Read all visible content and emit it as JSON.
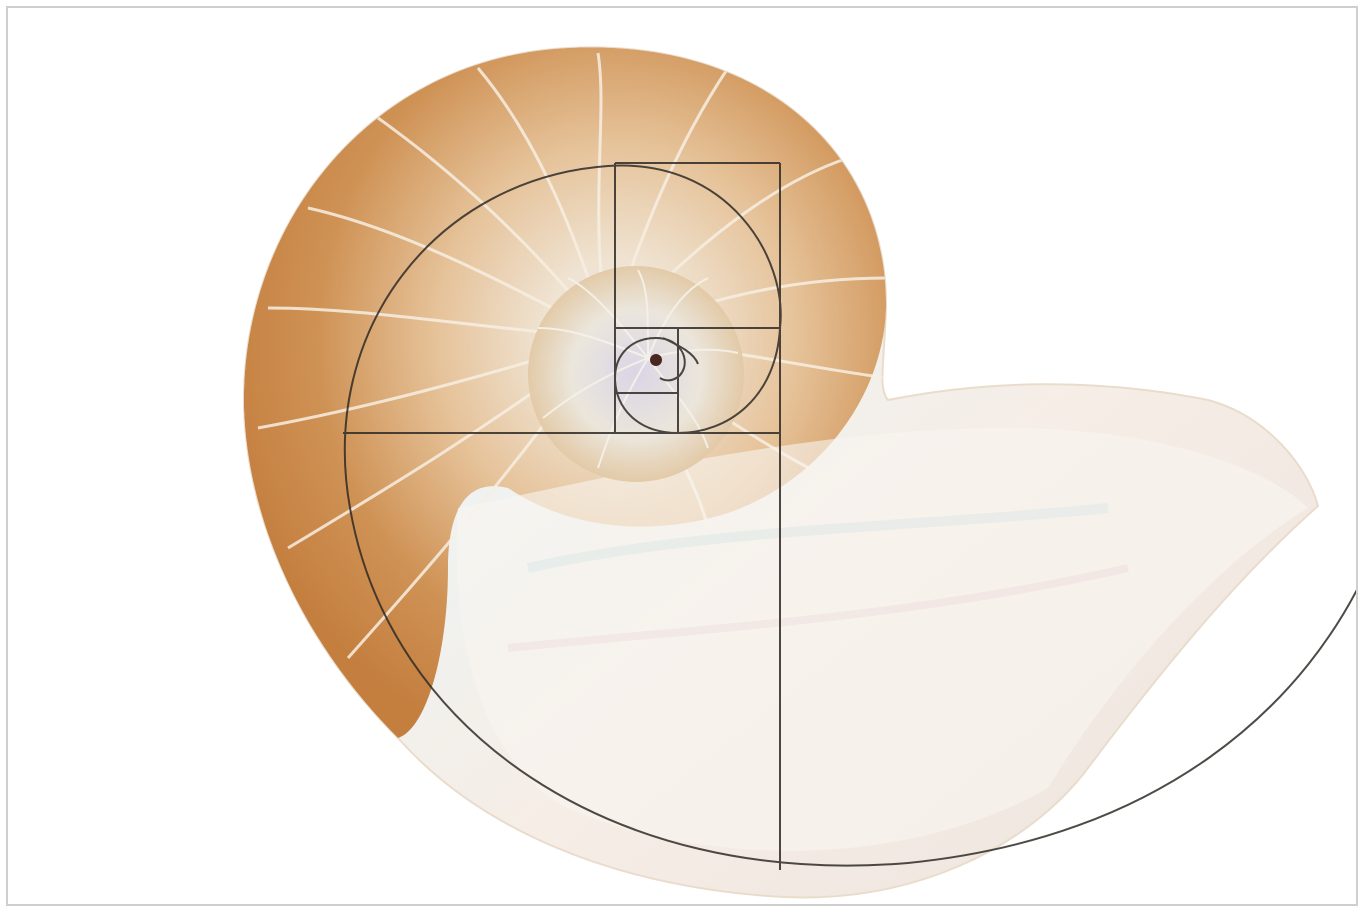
{
  "image": {
    "subject": "nautilus-shell-golden-spiral",
    "colors": {
      "background": "#ffffff",
      "frame_border": "#cfcfcf",
      "shell_orange": "#c98b4a",
      "shell_light": "#f3e3cc",
      "pearl": "#f4f1ec",
      "overlay_line": "#2f2a26"
    }
  }
}
